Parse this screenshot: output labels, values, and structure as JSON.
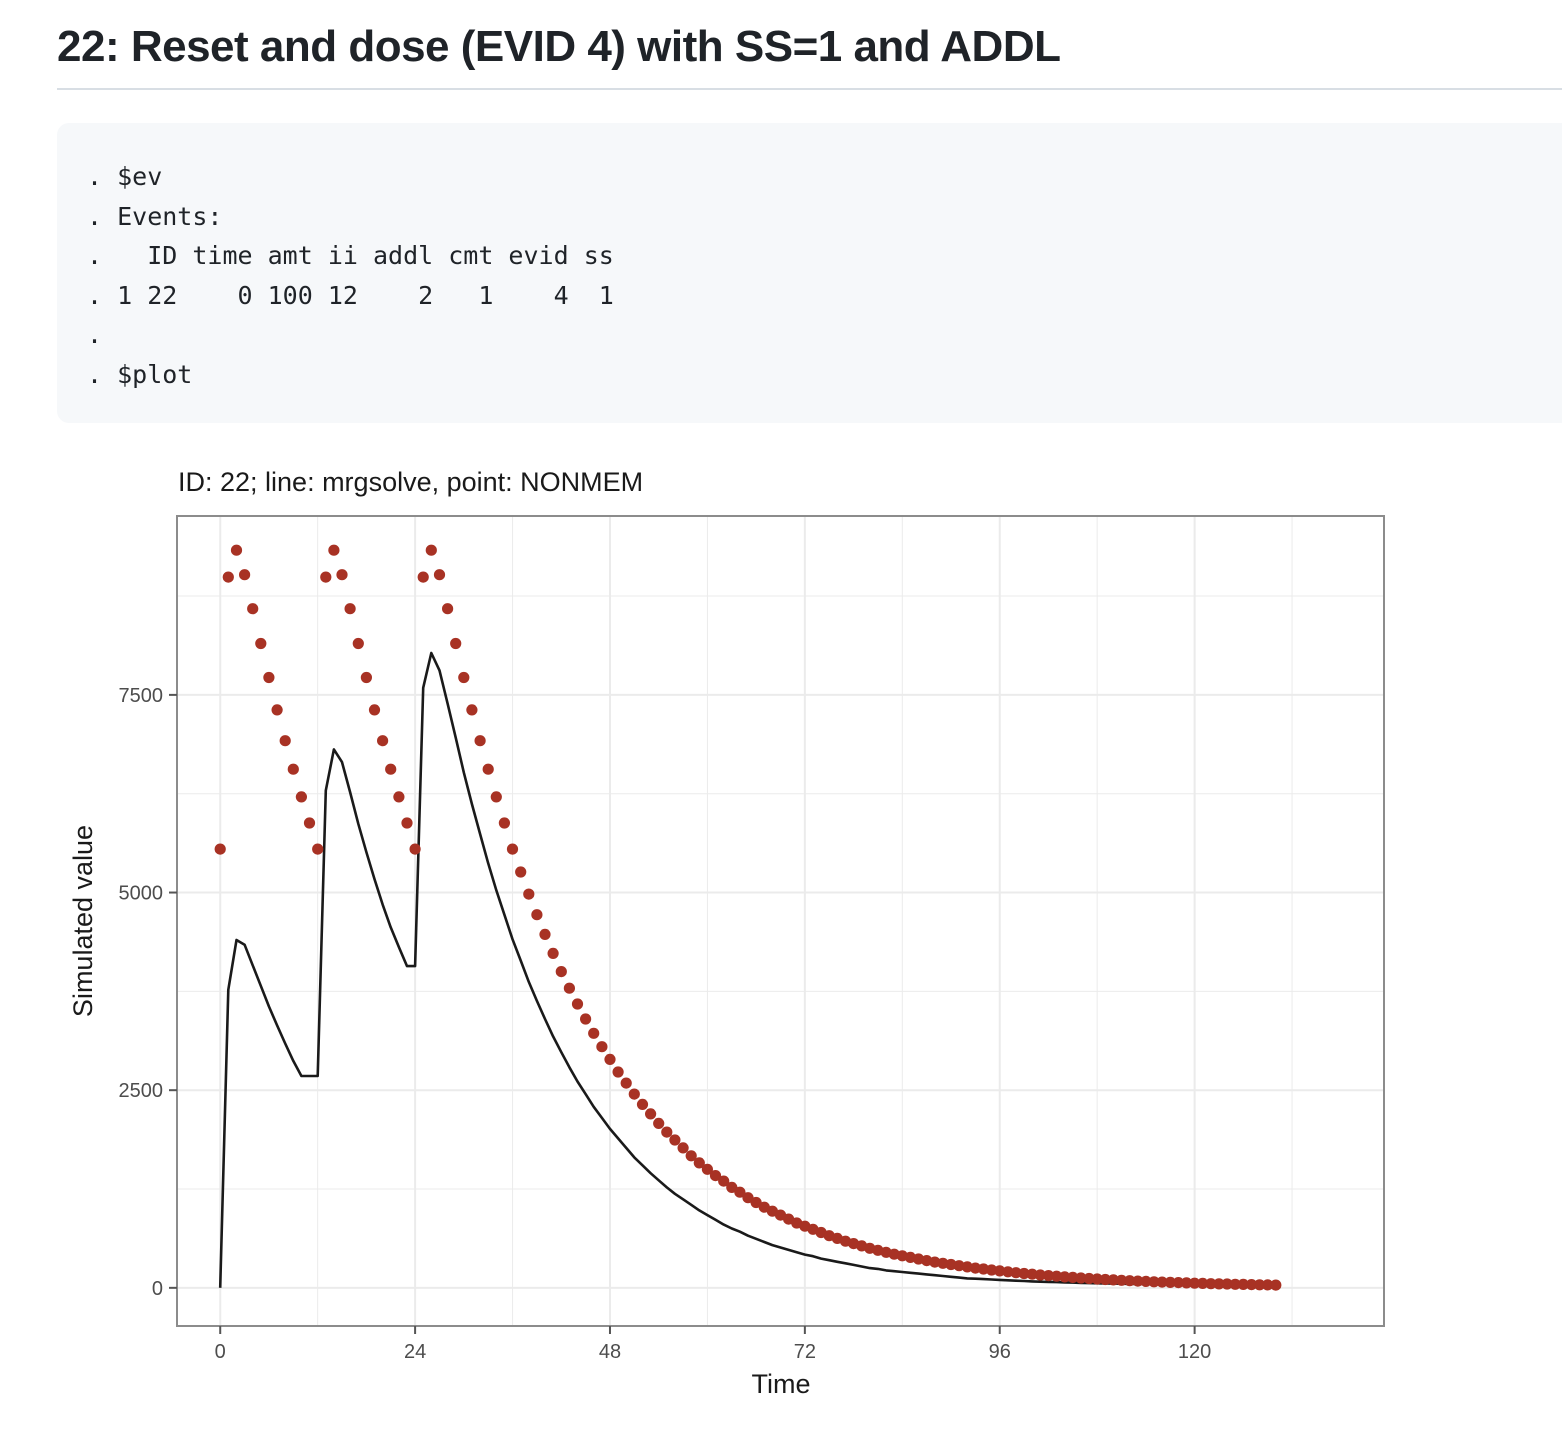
{
  "heading": "22: Reset and dose (EVID 4) with SS=1 and ADDL",
  "code_lines": [
    ". $ev",
    ". Events:",
    ".   ID time amt ii addl cmt evid ss",
    ". 1 22    0 100 12    2   1    4  1",
    ".",
    ". $plot"
  ],
  "colors": {
    "points": "#a83224",
    "line": "#1a1a1a",
    "grid": "#ebebeb",
    "panel_border": "#8c8c8c"
  },
  "chart_data": {
    "type": "line+scatter",
    "title": "ID: 22; line: mrgsolve, point: NONMEM",
    "xlabel": "Time",
    "ylabel": "Simulated value",
    "xlim": [
      -5.2,
      143.2
    ],
    "ylim": [
      -470,
      9750
    ],
    "x_ticks": [
      0,
      24,
      48,
      72,
      96,
      120
    ],
    "y_ticks": [
      0,
      2500,
      5000,
      7500
    ],
    "grid": true,
    "legend": "none",
    "series": [
      {
        "name": "mrgsolve",
        "kind": "line",
        "x": [
          0,
          1,
          2,
          3,
          4,
          5,
          6,
          7,
          8,
          9,
          10,
          11,
          12,
          13,
          14,
          15,
          16,
          17,
          18,
          19,
          20,
          21,
          22,
          23,
          24,
          25,
          26,
          27,
          28,
          29,
          30,
          31,
          32,
          33,
          34,
          35,
          36,
          37,
          38,
          39,
          40,
          41,
          42,
          43,
          44,
          45,
          46,
          47,
          48,
          49,
          50,
          51,
          52,
          53,
          54,
          55,
          56,
          57,
          58,
          59,
          60,
          61,
          62,
          63,
          64,
          65,
          66,
          67,
          68,
          69,
          70,
          71,
          72,
          73,
          74,
          75,
          76,
          77,
          78,
          79,
          80,
          81,
          82,
          83,
          84,
          85,
          86,
          87,
          88,
          89,
          90,
          91,
          92,
          93,
          94,
          95,
          96,
          97,
          98,
          99,
          100,
          101,
          102,
          103,
          104,
          105,
          106,
          107,
          108,
          109,
          110,
          111,
          112,
          113,
          114,
          115,
          116,
          117,
          118,
          119,
          120,
          121,
          122,
          123,
          124,
          125,
          126,
          127,
          128,
          129,
          130
        ],
        "y": [
          0,
          3770,
          4400,
          4340,
          4080,
          3820,
          3560,
          3320,
          3090,
          2870,
          2680,
          2680,
          2680,
          6290,
          6810,
          6650,
          6270,
          5870,
          5510,
          5170,
          4850,
          4560,
          4310,
          4070,
          4070,
          7590,
          8030,
          7810,
          7390,
          6960,
          6520,
          6120,
          5740,
          5370,
          5030,
          4720,
          4410,
          4140,
          3870,
          3630,
          3400,
          3180,
          2980,
          2790,
          2610,
          2450,
          2290,
          2150,
          2010,
          1890,
          1770,
          1650,
          1550,
          1450,
          1360,
          1270,
          1190,
          1120,
          1050,
          980,
          920,
          860,
          800,
          750,
          710,
          660,
          620,
          580,
          540,
          510,
          480,
          450,
          420,
          400,
          370,
          350,
          330,
          310,
          290,
          270,
          250,
          240,
          220,
          210,
          200,
          190,
          180,
          170,
          160,
          150,
          140,
          130,
          120,
          115,
          110,
          105,
          100,
          95,
          90,
          86,
          82,
          78,
          75,
          72,
          69,
          66,
          63,
          60,
          58,
          56,
          54,
          52,
          50,
          48,
          47,
          46,
          45,
          44,
          43,
          42,
          41,
          40,
          39,
          38,
          37,
          36,
          35,
          34,
          33,
          32,
          31
        ]
      },
      {
        "name": "NONMEM",
        "kind": "points",
        "x": [
          0,
          1,
          2,
          3,
          4,
          5,
          6,
          7,
          8,
          9,
          10,
          11,
          12,
          13,
          14,
          15,
          16,
          17,
          18,
          19,
          20,
          21,
          22,
          23,
          24,
          25,
          26,
          27,
          28,
          29,
          30,
          31,
          32,
          33,
          34,
          35,
          36,
          37,
          38,
          39,
          40,
          41,
          42,
          43,
          44,
          45,
          46,
          47,
          48,
          49,
          50,
          51,
          52,
          53,
          54,
          55,
          56,
          57,
          58,
          59,
          60,
          61,
          62,
          63,
          64,
          65,
          66,
          67,
          68,
          69,
          70,
          71,
          72,
          73,
          74,
          75,
          76,
          77,
          78,
          79,
          80,
          81,
          82,
          83,
          84,
          85,
          86,
          87,
          88,
          89,
          90,
          91,
          92,
          93,
          94,
          95,
          96,
          97,
          98,
          99,
          100,
          101,
          102,
          103,
          104,
          105,
          106,
          107,
          108,
          109,
          110,
          111,
          112,
          113,
          114,
          115,
          116,
          117,
          118,
          119,
          120,
          121,
          122,
          123,
          124,
          125,
          126,
          127,
          128,
          129,
          130
        ],
        "y": [
          5550,
          8990,
          9330,
          9020,
          8590,
          8150,
          7720,
          7310,
          6920,
          6560,
          6210,
          5880,
          5550,
          8990,
          9330,
          9020,
          8590,
          8150,
          7720,
          7310,
          6920,
          6560,
          6210,
          5880,
          5550,
          8990,
          9330,
          9020,
          8590,
          8150,
          7720,
          7310,
          6920,
          6560,
          6210,
          5880,
          5550,
          5260,
          4980,
          4720,
          4470,
          4230,
          4000,
          3790,
          3590,
          3400,
          3220,
          3050,
          2890,
          2730,
          2590,
          2450,
          2320,
          2200,
          2080,
          1970,
          1870,
          1770,
          1670,
          1580,
          1500,
          1420,
          1350,
          1270,
          1210,
          1140,
          1080,
          1020,
          970,
          920,
          870,
          820,
          780,
          740,
          700,
          660,
          625,
          590,
          560,
          530,
          500,
          475,
          450,
          425,
          405,
          385,
          365,
          345,
          325,
          310,
          295,
          280,
          265,
          250,
          238,
          226,
          214,
          203,
          192,
          182,
          172,
          163,
          155,
          147,
          139,
          132,
          125,
          118,
          112,
          106,
          100,
          95,
          90,
          85,
          81,
          77,
          73,
          69,
          66,
          62,
          59,
          56,
          53,
          50,
          48,
          45,
          43,
          41,
          39,
          37,
          35
        ]
      }
    ]
  }
}
